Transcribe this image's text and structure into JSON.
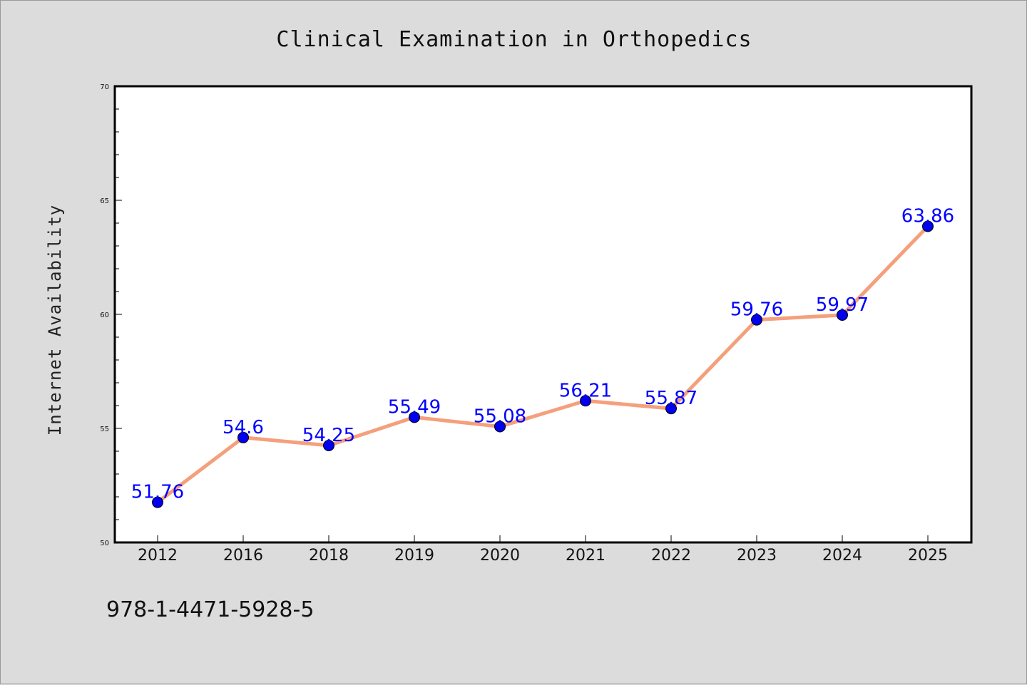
{
  "chart_data": {
    "type": "line",
    "title": "Clinical Examination in Orthopedics",
    "xlabel": "",
    "ylabel": "Internet Availability",
    "categories": [
      "2012",
      "2016",
      "2018",
      "2019",
      "2020",
      "2021",
      "2022",
      "2023",
      "2024",
      "2025"
    ],
    "series": [
      {
        "values": [
          51.76,
          54.6,
          54.25,
          55.49,
          55.08,
          56.21,
          55.87,
          59.76,
          59.97,
          63.86
        ],
        "labels": [
          "51.76",
          "54.6",
          "54.25",
          "55.49",
          "55.08",
          "56.21",
          "55.87",
          "59.76",
          "59.97",
          "63.86"
        ],
        "line_color": "#f4a07c",
        "marker_color": "#0000ee"
      }
    ],
    "ylim": [
      50,
      70
    ],
    "yticks": [
      "50",
      "55",
      "60",
      "65",
      "70"
    ],
    "grid": false,
    "label_color": "#0000ff"
  },
  "footer": {
    "isbn": "978-1-4471-5928-5"
  }
}
